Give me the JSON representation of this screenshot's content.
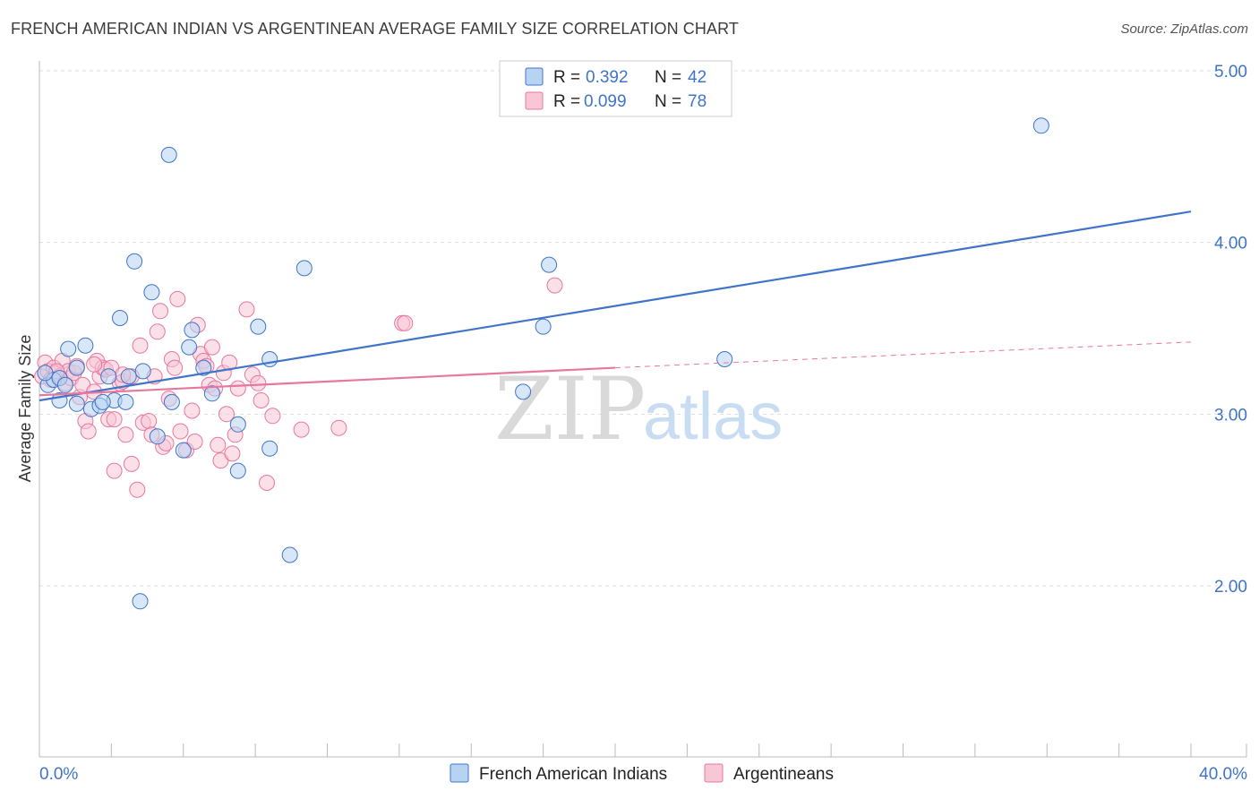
{
  "title": "FRENCH AMERICAN INDIAN VS ARGENTINEAN AVERAGE FAMILY SIZE CORRELATION CHART",
  "source": "Source: ZipAtlas.com",
  "watermark": {
    "zip": "ZIP",
    "atlas": "atlas"
  },
  "colors": {
    "blue": "#3f74c8",
    "blue_fill": "#b8d3f2",
    "pink": "#e8779e",
    "pink_fill": "#f7c7d6",
    "grid": "#dddddd"
  },
  "legend": {
    "series": [
      {
        "r_label": "R =",
        "r_value": "0.392",
        "n_label": "N =",
        "n_value": "42"
      },
      {
        "r_label": "R =",
        "r_value": "0.099",
        "n_label": "N =",
        "n_value": "78"
      }
    ],
    "bottom": [
      "French American Indians",
      "Argentineans"
    ]
  },
  "chart_data": {
    "type": "scatter",
    "xlabel": "",
    "ylabel": "Average Family Size",
    "xlim": [
      0,
      40
    ],
    "ylim": [
      1.0,
      5.1
    ],
    "x_tick_labels": [
      {
        "value": 0,
        "label": "0.0%"
      },
      {
        "value": 40,
        "label": "40.0%"
      }
    ],
    "y_tick_labels": [
      {
        "value": 2,
        "label": "2.00"
      },
      {
        "value": 3,
        "label": "3.00"
      },
      {
        "value": 4,
        "label": "4.00"
      },
      {
        "value": 5,
        "label": "5.00"
      }
    ],
    "series": [
      {
        "name": "French American Indians",
        "color": "#3f74c8",
        "trend": {
          "x": [
            0,
            40
          ],
          "y": [
            3.08,
            4.18
          ],
          "dashed_from": null
        },
        "points": [
          [
            0.3,
            3.17
          ],
          [
            0.5,
            3.2
          ],
          [
            0.7,
            3.21
          ],
          [
            0.9,
            3.17
          ],
          [
            0.7,
            3.08
          ],
          [
            1.0,
            3.38
          ],
          [
            1.3,
            3.27
          ],
          [
            1.6,
            3.4
          ],
          [
            1.3,
            3.06
          ],
          [
            1.8,
            3.03
          ],
          [
            2.1,
            3.05
          ],
          [
            2.4,
            3.22
          ],
          [
            2.6,
            3.08
          ],
          [
            2.8,
            3.56
          ],
          [
            3.0,
            3.07
          ],
          [
            3.1,
            3.22
          ],
          [
            3.3,
            3.89
          ],
          [
            3.6,
            3.25
          ],
          [
            3.9,
            3.71
          ],
          [
            4.1,
            2.87
          ],
          [
            4.6,
            3.07
          ],
          [
            4.5,
            4.51
          ],
          [
            5.0,
            2.79
          ],
          [
            5.2,
            3.39
          ],
          [
            5.3,
            3.49
          ],
          [
            5.7,
            3.27
          ],
          [
            6.0,
            3.12
          ],
          [
            6.9,
            2.94
          ],
          [
            6.9,
            2.67
          ],
          [
            7.6,
            3.51
          ],
          [
            8.0,
            3.32
          ],
          [
            8.0,
            2.8
          ],
          [
            8.7,
            2.18
          ],
          [
            9.2,
            3.85
          ],
          [
            3.5,
            1.91
          ],
          [
            16.8,
            3.13
          ],
          [
            17.5,
            3.51
          ],
          [
            17.7,
            3.87
          ],
          [
            23.8,
            3.32
          ],
          [
            34.8,
            4.68
          ],
          [
            2.2,
            3.07
          ],
          [
            0.2,
            3.24
          ]
        ]
      },
      {
        "name": "Argentineans",
        "color": "#e8779e",
        "trend": {
          "x": [
            0,
            20,
            40
          ],
          "y": [
            3.11,
            3.27,
            3.42
          ],
          "dashed_from": 20
        },
        "points": [
          [
            0.1,
            3.22
          ],
          [
            0.2,
            3.3
          ],
          [
            0.3,
            3.25
          ],
          [
            0.4,
            3.2
          ],
          [
            0.5,
            3.27
          ],
          [
            0.6,
            3.24
          ],
          [
            0.7,
            3.22
          ],
          [
            0.8,
            3.31
          ],
          [
            0.9,
            3.18
          ],
          [
            1.0,
            3.25
          ],
          [
            1.1,
            3.21
          ],
          [
            1.2,
            3.24
          ],
          [
            1.3,
            3.28
          ],
          [
            1.4,
            3.1
          ],
          [
            1.5,
            3.17
          ],
          [
            1.6,
            2.96
          ],
          [
            1.7,
            2.9
          ],
          [
            1.9,
            3.13
          ],
          [
            2.0,
            3.31
          ],
          [
            2.1,
            3.22
          ],
          [
            2.2,
            3.27
          ],
          [
            2.3,
            3.26
          ],
          [
            2.4,
            2.97
          ],
          [
            2.5,
            3.27
          ],
          [
            2.6,
            2.97
          ],
          [
            2.6,
            2.67
          ],
          [
            2.8,
            3.18
          ],
          [
            2.9,
            3.19
          ],
          [
            3.0,
            2.88
          ],
          [
            3.2,
            3.22
          ],
          [
            3.2,
            2.71
          ],
          [
            3.4,
            2.56
          ],
          [
            3.5,
            3.4
          ],
          [
            3.6,
            2.95
          ],
          [
            3.8,
            2.96
          ],
          [
            3.9,
            2.88
          ],
          [
            4.0,
            3.22
          ],
          [
            4.1,
            3.48
          ],
          [
            4.2,
            3.6
          ],
          [
            4.3,
            2.81
          ],
          [
            4.4,
            2.83
          ],
          [
            4.5,
            3.09
          ],
          [
            4.6,
            3.32
          ],
          [
            4.7,
            3.27
          ],
          [
            4.8,
            3.67
          ],
          [
            4.9,
            2.9
          ],
          [
            5.1,
            2.79
          ],
          [
            5.3,
            3.02
          ],
          [
            5.4,
            2.84
          ],
          [
            5.5,
            3.52
          ],
          [
            5.6,
            3.35
          ],
          [
            5.7,
            3.31
          ],
          [
            5.8,
            3.28
          ],
          [
            5.9,
            3.17
          ],
          [
            6.0,
            3.39
          ],
          [
            6.1,
            3.15
          ],
          [
            6.2,
            2.82
          ],
          [
            6.3,
            2.73
          ],
          [
            6.4,
            3.24
          ],
          [
            6.5,
            3.0
          ],
          [
            6.6,
            3.3
          ],
          [
            6.7,
            2.77
          ],
          [
            6.8,
            2.88
          ],
          [
            6.9,
            3.15
          ],
          [
            7.2,
            3.61
          ],
          [
            7.4,
            3.23
          ],
          [
            7.6,
            3.18
          ],
          [
            7.7,
            3.08
          ],
          [
            7.9,
            2.6
          ],
          [
            8.1,
            2.99
          ],
          [
            9.1,
            2.91
          ],
          [
            10.4,
            2.92
          ],
          [
            12.6,
            3.53
          ],
          [
            12.7,
            3.53
          ],
          [
            17.9,
            3.75
          ],
          [
            1.9,
            3.29
          ],
          [
            0.6,
            3.25
          ],
          [
            2.9,
            3.23
          ]
        ]
      }
    ]
  }
}
